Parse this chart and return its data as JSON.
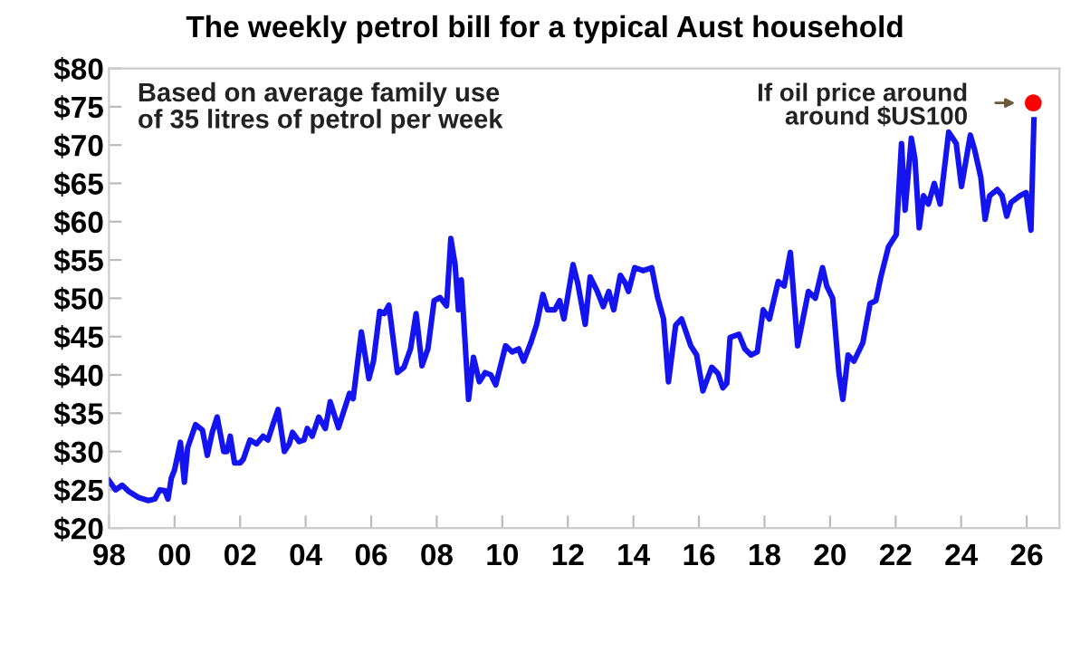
{
  "chart_data": {
    "type": "line",
    "title": "The weekly petrol bill for a typical Aust household",
    "annotations": [
      "Based on average family use\nof 35 litres of petrol per week",
      {
        "text": "If oil price around\naround $US100",
        "x": 2026.2,
        "y": 75.5
      }
    ],
    "xlim": [
      1998,
      2027
    ],
    "ylim": [
      20,
      80
    ],
    "xticks": [
      {
        "value": 1998,
        "label": "98"
      },
      {
        "value": 2000,
        "label": "00"
      },
      {
        "value": 2002,
        "label": "02"
      },
      {
        "value": 2004,
        "label": "04"
      },
      {
        "value": 2006,
        "label": "06"
      },
      {
        "value": 2008,
        "label": "08"
      },
      {
        "value": 2010,
        "label": "10"
      },
      {
        "value": 2012,
        "label": "12"
      },
      {
        "value": 2014,
        "label": "14"
      },
      {
        "value": 2016,
        "label": "16"
      },
      {
        "value": 2018,
        "label": "18"
      },
      {
        "value": 2020,
        "label": "20"
      },
      {
        "value": 2022,
        "label": "22"
      },
      {
        "value": 2024,
        "label": "24"
      },
      {
        "value": 2026,
        "label": "26"
      }
    ],
    "yticks": [
      {
        "value": 20,
        "label": "$20"
      },
      {
        "value": 25,
        "label": "$25"
      },
      {
        "value": 30,
        "label": "$30"
      },
      {
        "value": 35,
        "label": "$35"
      },
      {
        "value": 40,
        "label": "$40"
      },
      {
        "value": 45,
        "label": "$45"
      },
      {
        "value": 50,
        "label": "$50"
      },
      {
        "value": 55,
        "label": "$55"
      },
      {
        "value": 60,
        "label": "$60"
      },
      {
        "value": 65,
        "label": "$65"
      },
      {
        "value": 70,
        "label": "$70"
      },
      {
        "value": 75,
        "label": "$75"
      },
      {
        "value": 80,
        "label": "$80"
      }
    ],
    "grid": false,
    "legend": false,
    "line_style": "solid",
    "series": [
      {
        "color": "#1414f0",
        "marker": "none",
        "x": [
          1998.0,
          1998.2,
          1998.4,
          1998.6,
          1998.9,
          1999.2,
          1999.4,
          1999.55,
          1999.7,
          1999.8,
          1999.9,
          2000.0,
          2000.18,
          2000.3,
          2000.4,
          2000.64,
          2000.85,
          2001.0,
          2001.15,
          2001.3,
          2001.5,
          2001.6,
          2001.7,
          2001.83,
          2002.0,
          2002.1,
          2002.3,
          2002.5,
          2002.7,
          2002.85,
          2003.0,
          2003.16,
          2003.35,
          2003.5,
          2003.6,
          2003.8,
          2003.95,
          2004.05,
          2004.2,
          2004.4,
          2004.6,
          2004.75,
          2005.0,
          2005.34,
          2005.45,
          2005.7,
          2005.93,
          2006.07,
          2006.26,
          2006.4,
          2006.54,
          2006.8,
          2007.0,
          2007.2,
          2007.37,
          2007.55,
          2007.73,
          2007.92,
          2008.1,
          2008.3,
          2008.43,
          2008.56,
          2008.66,
          2008.75,
          2008.97,
          2009.12,
          2009.3,
          2009.48,
          2009.65,
          2009.8,
          2010.1,
          2010.3,
          2010.5,
          2010.65,
          2010.87,
          2011.05,
          2011.24,
          2011.38,
          2011.6,
          2011.75,
          2011.88,
          2012.16,
          2012.3,
          2012.53,
          2012.68,
          2012.9,
          2013.08,
          2013.25,
          2013.4,
          2013.6,
          2013.75,
          2013.85,
          2014.04,
          2014.3,
          2014.56,
          2014.74,
          2014.92,
          2015.07,
          2015.29,
          2015.47,
          2015.75,
          2015.93,
          2016.12,
          2016.39,
          2016.58,
          2016.73,
          2016.85,
          2016.95,
          2017.22,
          2017.4,
          2017.59,
          2017.78,
          2017.96,
          2018.15,
          2018.42,
          2018.6,
          2018.79,
          2019.01,
          2019.34,
          2019.55,
          2019.77,
          2019.9,
          2020.08,
          2020.27,
          2020.39,
          2020.55,
          2020.73,
          2021.0,
          2021.22,
          2021.4,
          2021.55,
          2021.78,
          2022.02,
          2022.18,
          2022.29,
          2022.48,
          2022.59,
          2022.72,
          2022.85,
          2023.0,
          2023.18,
          2023.36,
          2023.62,
          2023.85,
          2024.01,
          2024.28,
          2024.41,
          2024.6,
          2024.73,
          2024.87,
          2025.1,
          2025.25,
          2025.39,
          2025.52,
          2025.8,
          2025.98,
          2026.13,
          2026.22
        ],
        "values": [
          26.2,
          25.0,
          25.6,
          24.8,
          24.0,
          23.6,
          23.8,
          25.0,
          24.9,
          23.8,
          26.5,
          27.6,
          31.2,
          26.0,
          30.5,
          33.5,
          32.8,
          29.5,
          32.5,
          34.5,
          30.0,
          30.0,
          32.0,
          28.5,
          28.5,
          29.0,
          31.5,
          31.0,
          32.0,
          31.5,
          33.5,
          35.5,
          30.0,
          31.0,
          32.5,
          31.3,
          31.5,
          33.0,
          32.0,
          34.5,
          33.0,
          36.5,
          33.1,
          37.6,
          36.9,
          45.6,
          39.5,
          41.8,
          48.3,
          48.0,
          49.1,
          40.3,
          41.0,
          43.4,
          48.0,
          41.2,
          43.4,
          49.7,
          50.1,
          49.0,
          57.8,
          54.4,
          48.5,
          52.4,
          36.8,
          42.3,
          39.1,
          40.3,
          40.0,
          38.7,
          43.8,
          43.0,
          43.4,
          41.8,
          44.2,
          46.6,
          50.5,
          48.5,
          48.5,
          49.7,
          47.3,
          54.4,
          52.0,
          46.6,
          52.8,
          50.9,
          48.9,
          50.9,
          48.5,
          53.0,
          52.0,
          50.9,
          54.0,
          53.6,
          54.0,
          50.1,
          47.3,
          39.1,
          46.5,
          47.3,
          43.8,
          42.6,
          37.9,
          41.0,
          40.2,
          38.3,
          38.9,
          44.9,
          45.3,
          43.4,
          42.6,
          43.0,
          48.5,
          47.3,
          52.2,
          51.6,
          56.0,
          43.8,
          50.9,
          50.0,
          54.0,
          51.6,
          50.0,
          40.3,
          36.8,
          42.6,
          41.8,
          44.2,
          49.3,
          49.7,
          52.8,
          56.7,
          58.3,
          70.2,
          61.5,
          70.9,
          68.2,
          59.2,
          63.4,
          62.3,
          65.0,
          62.3,
          71.7,
          70.2,
          64.6,
          71.3,
          69.4,
          65.8,
          60.3,
          63.4,
          64.2,
          63.4,
          60.7,
          62.5,
          63.4,
          63.8,
          58.9,
          73.3
        ]
      },
      {
        "type": "scatter",
        "color": "#ff0000",
        "marker": "circle",
        "x": [
          2026.2
        ],
        "values": [
          75.5
        ]
      }
    ]
  }
}
